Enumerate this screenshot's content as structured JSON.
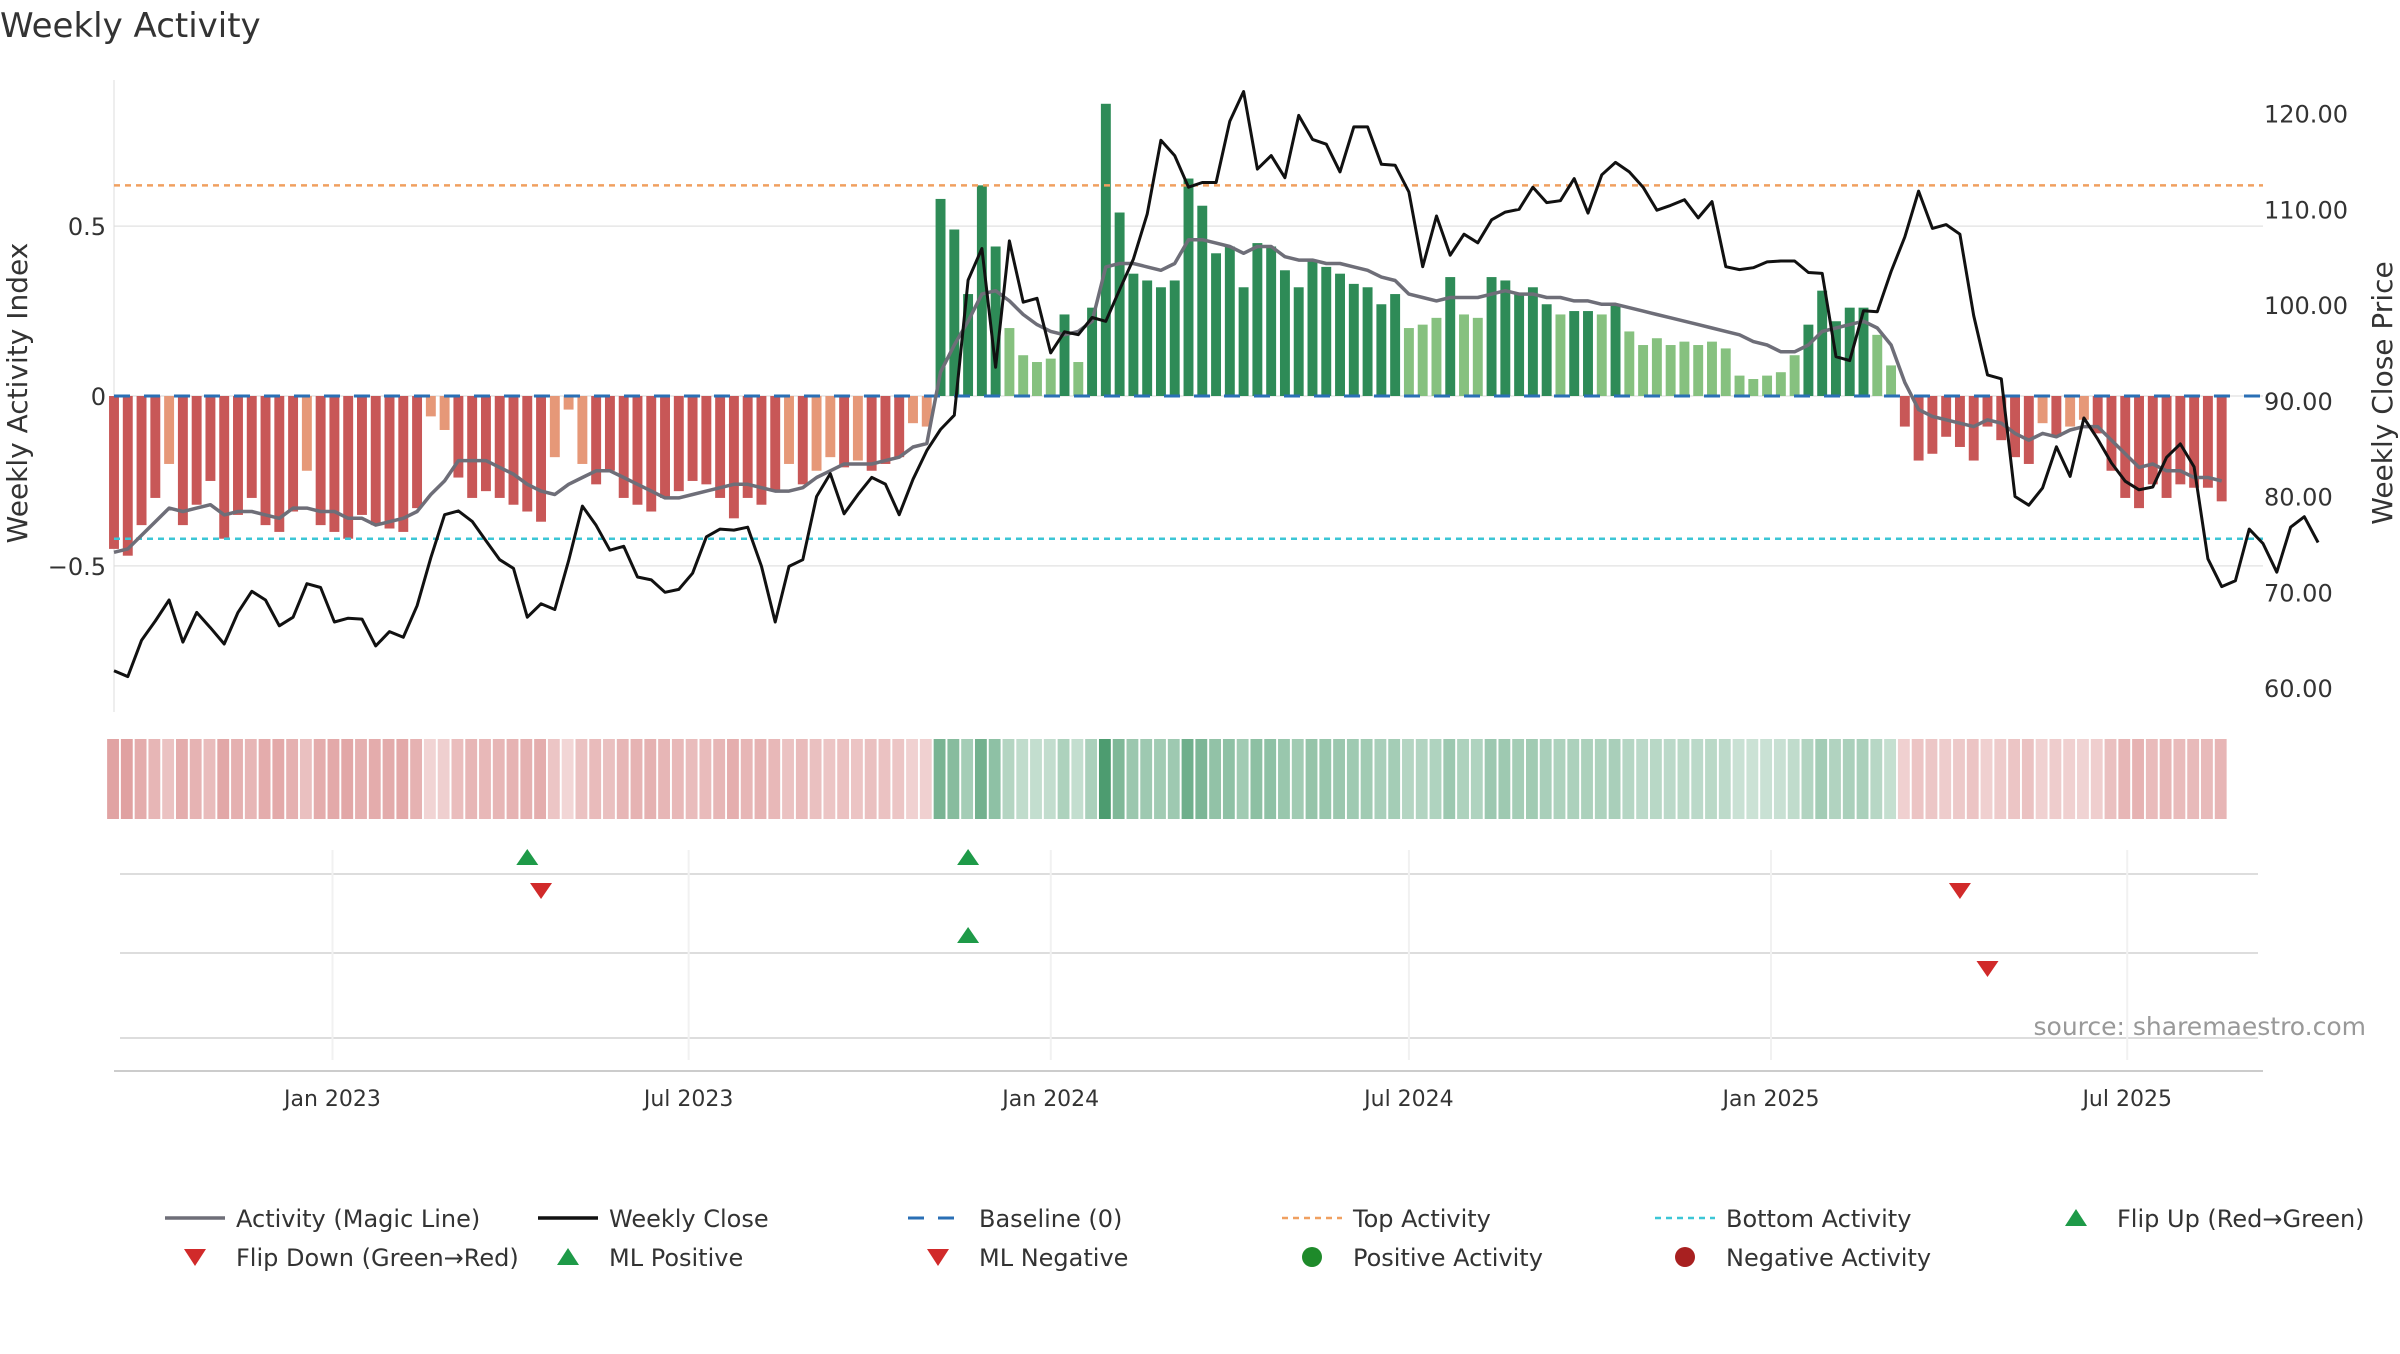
{
  "chart_data": {
    "type": "bar",
    "title": "Weekly Activity",
    "source": "source: sharemaestro.com",
    "ylabel_left": "Weekly Activity Index",
    "ylabel_right": "Weekly Close Price",
    "x_range": [
      "2022-09-12",
      "2025-09-08"
    ],
    "x_ticks": [
      {
        "date": "2023-01-01",
        "label": "Jan 2023"
      },
      {
        "date": "2023-07-01",
        "label": "Jul 2023"
      },
      {
        "date": "2024-01-01",
        "label": "Jan 2024"
      },
      {
        "date": "2024-07-01",
        "label": "Jul 2024"
      },
      {
        "date": "2025-01-01",
        "label": "Jan 2025"
      },
      {
        "date": "2025-07-01",
        "label": "Jul 2025"
      }
    ],
    "y_left_range": [
      -0.93,
      0.93
    ],
    "y_left_ticks": [
      {
        "value": 0.5,
        "label": "0.5"
      },
      {
        "value": 0,
        "label": "0"
      },
      {
        "value": -0.5,
        "label": "−0.5"
      }
    ],
    "y_right_range": [
      57.5,
      123.5
    ],
    "y_right_ticks": [
      {
        "value": 120,
        "label": "120.00"
      },
      {
        "value": 110,
        "label": "110.00"
      },
      {
        "value": 100,
        "label": "100.00"
      },
      {
        "value": 90,
        "label": "90.00"
      },
      {
        "value": 80,
        "label": "80.00"
      },
      {
        "value": 70,
        "label": "70.00"
      },
      {
        "value": 60,
        "label": "60.00"
      }
    ],
    "top_activity": 0.62,
    "bottom_activity": -0.42,
    "baseline": 0,
    "start_date": "2022-09-12",
    "activity": [
      -0.45,
      -0.47,
      -0.38,
      -0.3,
      -0.2,
      -0.38,
      -0.32,
      -0.25,
      -0.42,
      -0.35,
      -0.3,
      -0.38,
      -0.4,
      -0.34,
      -0.22,
      -0.38,
      -0.4,
      -0.42,
      -0.35,
      -0.38,
      -0.39,
      -0.4,
      -0.33,
      -0.06,
      -0.1,
      -0.24,
      -0.3,
      -0.28,
      -0.3,
      -0.32,
      -0.34,
      -0.37,
      -0.18,
      -0.04,
      -0.2,
      -0.26,
      -0.22,
      -0.3,
      -0.32,
      -0.34,
      -0.3,
      -0.28,
      -0.25,
      -0.26,
      -0.3,
      -0.36,
      -0.3,
      -0.32,
      -0.28,
      -0.2,
      -0.26,
      -0.22,
      -0.18,
      -0.21,
      -0.19,
      -0.22,
      -0.2,
      -0.18,
      -0.08,
      -0.09,
      0.58,
      0.49,
      0.3,
      0.62,
      0.44,
      0.2,
      0.12,
      0.1,
      0.11,
      0.24,
      0.1,
      0.26,
      0.86,
      0.54,
      0.36,
      0.34,
      0.32,
      0.34,
      0.64,
      0.56,
      0.42,
      0.44,
      0.32,
      0.45,
      0.44,
      0.37,
      0.32,
      0.4,
      0.38,
      0.36,
      0.33,
      0.32,
      0.27,
      0.3,
      0.2,
      0.21,
      0.23,
      0.35,
      0.24,
      0.23,
      0.35,
      0.34,
      0.3,
      0.32,
      0.27,
      0.24,
      0.25,
      0.25,
      0.24,
      0.27,
      0.19,
      0.15,
      0.17,
      0.15,
      0.16,
      0.15,
      0.16,
      0.14,
      0.06,
      0.05,
      0.06,
      0.07,
      0.12,
      0.21,
      0.31,
      0.22,
      0.26,
      0.26,
      0.18,
      0.09,
      -0.09,
      -0.19,
      -0.17,
      -0.12,
      -0.15,
      -0.19,
      -0.09,
      -0.13,
      -0.18,
      -0.2,
      -0.08,
      -0.12,
      -0.09,
      -0.07,
      -0.11,
      -0.22,
      -0.3,
      -0.33,
      -0.26,
      -0.3,
      -0.26,
      -0.27,
      -0.27,
      -0.31
    ],
    "magic_line": [
      -0.46,
      -0.45,
      -0.41,
      -0.37,
      -0.33,
      -0.34,
      -0.33,
      -0.32,
      -0.35,
      -0.34,
      -0.34,
      -0.35,
      -0.36,
      -0.33,
      -0.33,
      -0.34,
      -0.34,
      -0.36,
      -0.36,
      -0.38,
      -0.37,
      -0.36,
      -0.34,
      -0.29,
      -0.25,
      -0.19,
      -0.19,
      -0.19,
      -0.21,
      -0.23,
      -0.26,
      -0.28,
      -0.29,
      -0.26,
      -0.24,
      -0.22,
      -0.22,
      -0.24,
      -0.26,
      -0.28,
      -0.3,
      -0.3,
      -0.29,
      -0.28,
      -0.27,
      -0.26,
      -0.26,
      -0.27,
      -0.28,
      -0.28,
      -0.27,
      -0.24,
      -0.22,
      -0.2,
      -0.2,
      -0.2,
      -0.19,
      -0.18,
      -0.15,
      -0.14,
      0.07,
      0.15,
      0.22,
      0.3,
      0.31,
      0.28,
      0.24,
      0.21,
      0.19,
      0.18,
      0.19,
      0.22,
      0.38,
      0.39,
      0.39,
      0.38,
      0.37,
      0.39,
      0.46,
      0.46,
      0.45,
      0.44,
      0.42,
      0.44,
      0.44,
      0.41,
      0.4,
      0.4,
      0.39,
      0.39,
      0.38,
      0.37,
      0.35,
      0.34,
      0.3,
      0.29,
      0.28,
      0.29,
      0.29,
      0.29,
      0.3,
      0.31,
      0.3,
      0.3,
      0.29,
      0.29,
      0.28,
      0.28,
      0.27,
      0.27,
      0.26,
      0.25,
      0.24,
      0.23,
      0.22,
      0.21,
      0.2,
      0.19,
      0.18,
      0.16,
      0.15,
      0.13,
      0.13,
      0.15,
      0.19,
      0.2,
      0.21,
      0.22,
      0.2,
      0.15,
      0.04,
      -0.04,
      -0.06,
      -0.07,
      -0.08,
      -0.09,
      -0.07,
      -0.08,
      -0.11,
      -0.13,
      -0.11,
      -0.12,
      -0.1,
      -0.09,
      -0.09,
      -0.13,
      -0.17,
      -0.21,
      -0.2,
      -0.22,
      -0.22,
      -0.24,
      -0.24,
      -0.25
    ],
    "close": [
      61.8,
      61.2,
      65.0,
      67.0,
      69.2,
      64.8,
      67.9,
      66.3,
      64.6,
      67.9,
      70.1,
      69.2,
      66.5,
      67.4,
      70.9,
      70.5,
      66.9,
      67.3,
      67.2,
      64.4,
      65.9,
      65.3,
      68.6,
      73.6,
      78.1,
      78.5,
      77.4,
      75.4,
      73.4,
      72.5,
      67.4,
      68.8,
      68.2,
      73.3,
      79.0,
      77.0,
      74.4,
      74.8,
      71.6,
      71.3,
      70.0,
      70.3,
      72.0,
      75.8,
      76.6,
      76.5,
      76.8,
      72.7,
      66.9,
      72.7,
      73.4,
      80.0,
      82.4,
      78.2,
      80.2,
      82.0,
      81.3,
      78.1,
      81.8,
      84.8,
      87.0,
      88.5,
      102.6,
      105.9,
      93.5,
      106.7,
      100.3,
      100.7,
      95.0,
      97.2,
      96.9,
      98.7,
      98.3,
      101.6,
      104.8,
      109.5,
      117.2,
      115.6,
      112.3,
      112.8,
      112.8,
      119.2,
      122.3,
      114.2,
      115.6,
      113.3,
      119.8,
      117.3,
      116.8,
      113.9,
      118.6,
      118.6,
      114.7,
      114.6,
      111.8,
      104.0,
      109.3,
      105.2,
      107.4,
      106.5,
      108.9,
      109.7,
      110.0,
      112.3,
      110.7,
      110.9,
      113.2,
      109.6,
      113.6,
      114.9,
      113.9,
      112.3,
      109.9,
      110.4,
      111.0,
      109.1,
      110.8,
      104.0,
      103.7,
      103.9,
      104.5,
      104.6,
      104.6,
      103.4,
      103.3,
      94.6,
      94.2,
      99.4,
      99.3,
      103.5,
      107.1,
      111.9,
      108.0,
      108.4,
      107.4,
      98.9,
      92.7,
      92.3,
      80.0,
      79.1,
      80.9,
      85.2,
      82.1,
      88.2,
      86.0,
      83.5,
      81.6,
      80.7,
      81.0,
      84.1,
      85.5,
      83.1,
      73.5,
      70.6,
      71.2,
      76.6,
      75.1,
      72.1,
      76.8,
      77.9,
      75.2
    ],
    "flip_up": [
      "2023-04-10",
      "2023-11-20"
    ],
    "flip_down": [
      "2023-04-17",
      "2025-04-07"
    ],
    "ml_positive": [
      "2023-11-20"
    ],
    "ml_negative": [
      "2025-04-21"
    ],
    "legend": [
      {
        "key": "magic",
        "label": "Activity (Magic Line)"
      },
      {
        "key": "close",
        "label": "Weekly Close"
      },
      {
        "key": "baseline",
        "label": "Baseline (0)"
      },
      {
        "key": "top",
        "label": "Top Activity"
      },
      {
        "key": "bottom",
        "label": "Bottom Activity"
      },
      {
        "key": "flipup",
        "label": "Flip Up (Red→Green)"
      },
      {
        "key": "flipdown",
        "label": "Flip Down (Green→Red)"
      },
      {
        "key": "mlpos",
        "label": "ML Positive"
      },
      {
        "key": "mlneg",
        "label": "ML Negative"
      },
      {
        "key": "posact",
        "label": "Positive Activity"
      },
      {
        "key": "negact",
        "label": "Negative Activity"
      }
    ],
    "grid": true,
    "legend_position": "bottom"
  },
  "colors": {
    "pos_strong": "#2e8b57",
    "pos_light": "#86c17f",
    "neg_strong": "#c85757",
    "neg_light": "#e69878",
    "magic": "#6e6e78",
    "close": "#111111",
    "baseline": "#2a6fb5",
    "top": "#f0a060",
    "bottom": "#3cc6d6",
    "flip_up": "#1e9a48",
    "flip_down": "#d12a2a",
    "pos_dot": "#1e8a2a",
    "neg_dot": "#a82020",
    "grid": "#e6e6e6",
    "axis_text": "#333333"
  }
}
